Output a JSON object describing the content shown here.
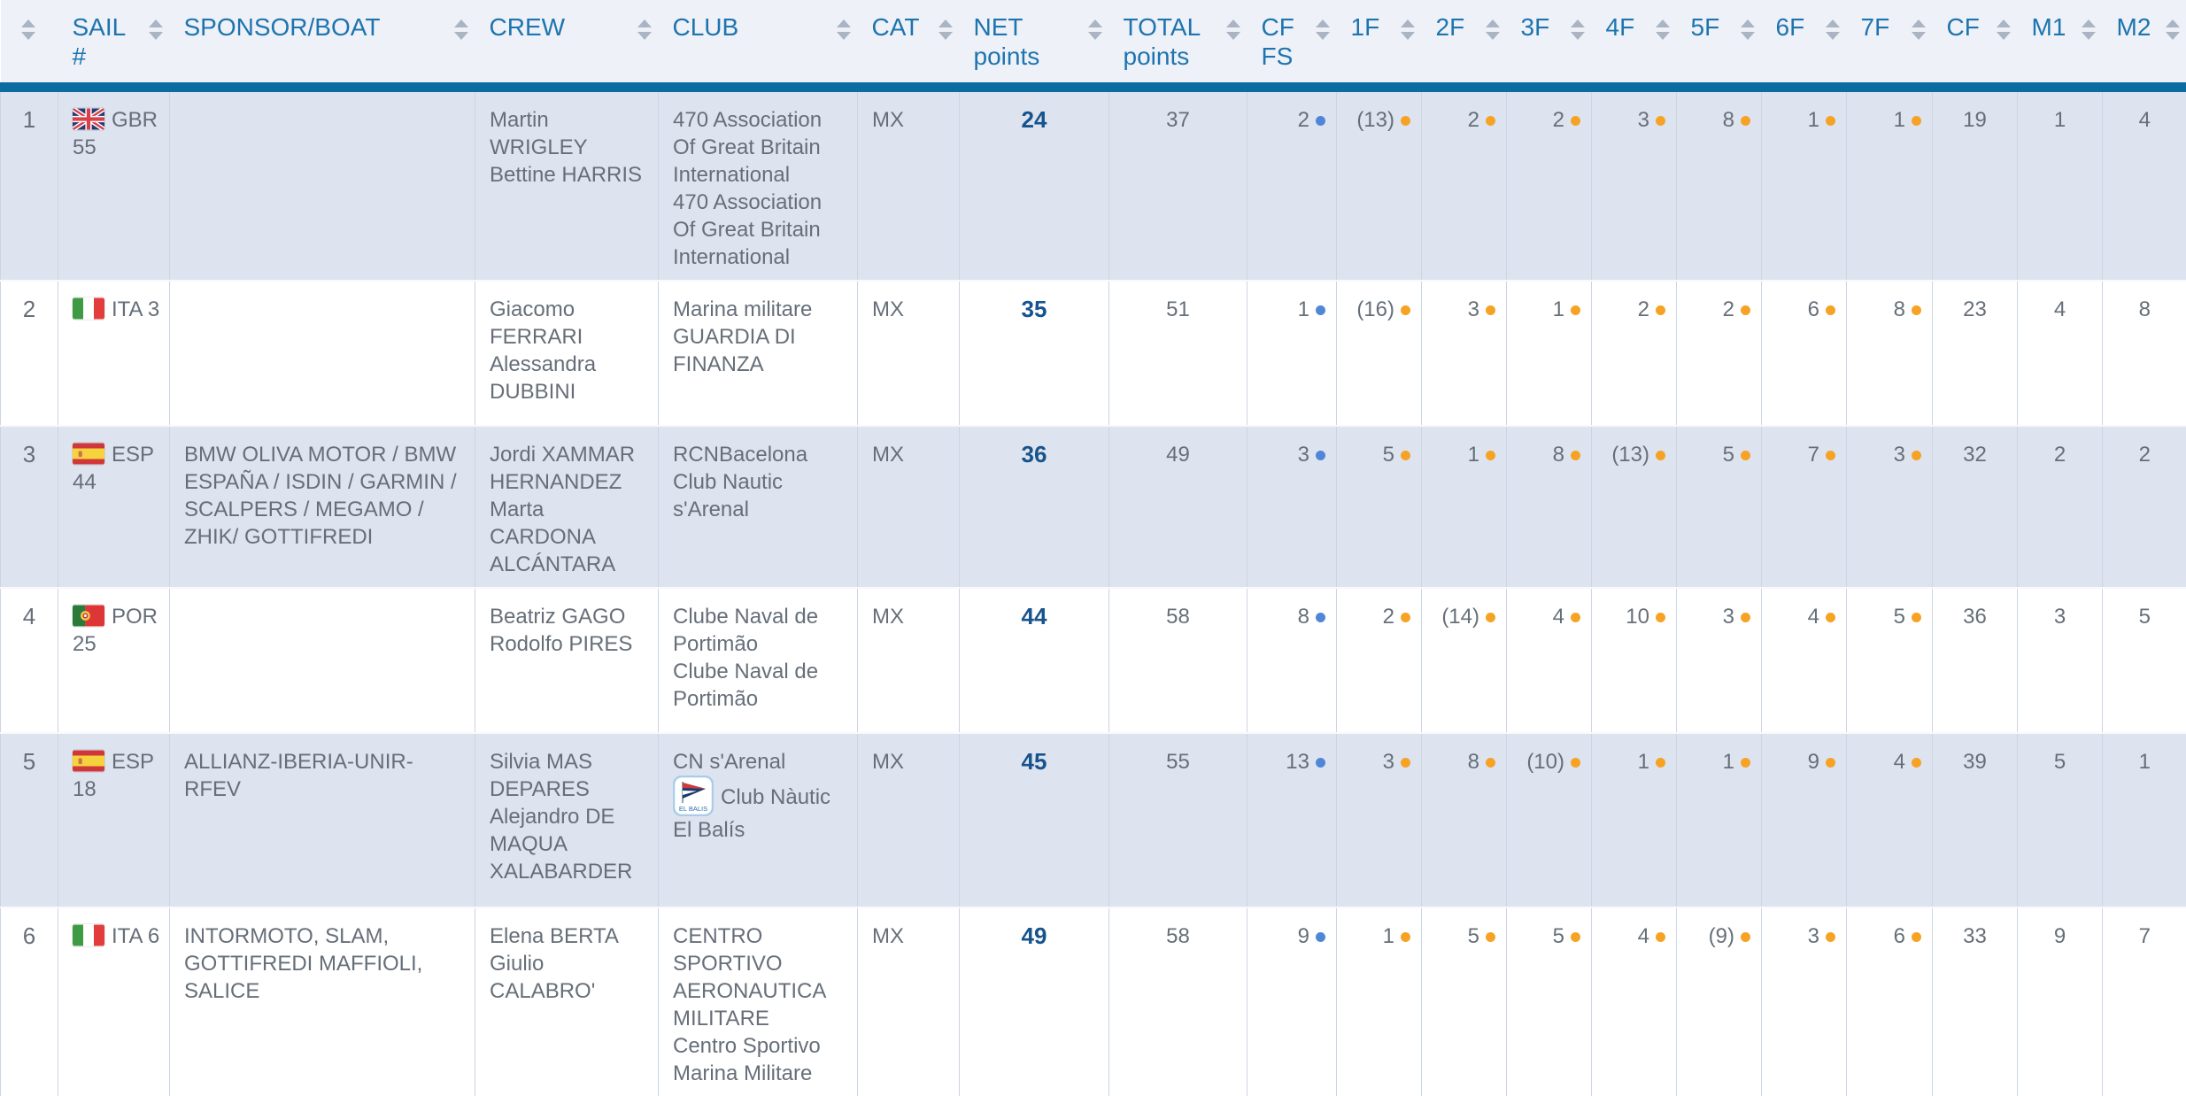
{
  "colors": {
    "header_text": "#1d74af",
    "header_bar": "#0c6ca2",
    "header_bg": "#eef1f7",
    "row_alt_bg": "#dde4ef",
    "body_text": "#666f79",
    "net_text": "#17538d",
    "dot_orange": "#f6a325",
    "dot_blue": "#4f87d7",
    "sort_arrow": "#aab4c2"
  },
  "header": {
    "columns": [
      {
        "id": "rank",
        "label": ""
      },
      {
        "id": "sail",
        "label": "SAIL #"
      },
      {
        "id": "sponsor",
        "label": "SPONSOR/BOAT"
      },
      {
        "id": "crew",
        "label": "CREW"
      },
      {
        "id": "club",
        "label": "CLUB"
      },
      {
        "id": "cat",
        "label": "CAT"
      },
      {
        "id": "net",
        "label": "NET points"
      },
      {
        "id": "total",
        "label": "TOTAL points"
      },
      {
        "id": "cffs",
        "label": "CF FS"
      },
      {
        "id": "r1",
        "label": "1F"
      },
      {
        "id": "r2",
        "label": "2F"
      },
      {
        "id": "r3",
        "label": "3F"
      },
      {
        "id": "r4",
        "label": "4F"
      },
      {
        "id": "r5",
        "label": "5F"
      },
      {
        "id": "r6",
        "label": "6F"
      },
      {
        "id": "r7",
        "label": "7F"
      },
      {
        "id": "cf",
        "label": "CF"
      },
      {
        "id": "m1",
        "label": "M1"
      },
      {
        "id": "m2",
        "label": "M2"
      }
    ]
  },
  "rows": [
    {
      "rank": "1",
      "flag": "gbr",
      "sail": "GBR 55",
      "sponsor": "",
      "crew": [
        "Martin WRIGLEY",
        "Bettine HARRIS"
      ],
      "club": [
        {
          "text": "470 Association Of Great Britain International"
        },
        {
          "text": "470 Association Of Great Britain International"
        }
      ],
      "cat": "MX",
      "net": "24",
      "total": "37",
      "cffs": {
        "value": "2",
        "dot": "blue"
      },
      "races": [
        {
          "value": "(13)",
          "dot": "orange"
        },
        {
          "value": "2",
          "dot": "orange"
        },
        {
          "value": "2",
          "dot": "orange"
        },
        {
          "value": "3",
          "dot": "orange"
        },
        {
          "value": "8",
          "dot": "orange"
        },
        {
          "value": "1",
          "dot": "orange"
        },
        {
          "value": "1",
          "dot": "orange"
        }
      ],
      "cf": "19",
      "m1": "1",
      "m2": "4"
    },
    {
      "rank": "2",
      "flag": "ita",
      "sail": "ITA 3",
      "sponsor": "",
      "crew": [
        "Giacomo FERRARI",
        "Alessandra DUBBINI"
      ],
      "club": [
        {
          "text": "Marina militare GUARDIA DI FINANZA"
        }
      ],
      "cat": "MX",
      "net": "35",
      "total": "51",
      "cffs": {
        "value": "1",
        "dot": "blue"
      },
      "races": [
        {
          "value": "(16)",
          "dot": "orange"
        },
        {
          "value": "3",
          "dot": "orange"
        },
        {
          "value": "1",
          "dot": "orange"
        },
        {
          "value": "2",
          "dot": "orange"
        },
        {
          "value": "2",
          "dot": "orange"
        },
        {
          "value": "6",
          "dot": "orange"
        },
        {
          "value": "8",
          "dot": "orange"
        }
      ],
      "cf": "23",
      "m1": "4",
      "m2": "8"
    },
    {
      "rank": "3",
      "flag": "esp",
      "sail": "ESP 44",
      "sponsor": "BMW OLIVA MOTOR / BMW ESPAÑA / ISDIN / GARMIN / SCALPERS / MEGAMO / ZHIK/ GOTTIFREDI",
      "crew": [
        "Jordi XAMMAR HERNANDEZ",
        "Marta CARDONA ALCÁNTARA"
      ],
      "club": [
        {
          "text": "RCNBacelona"
        },
        {
          "text": "Club Nautic s'Arenal"
        }
      ],
      "cat": "MX",
      "net": "36",
      "total": "49",
      "cffs": {
        "value": "3",
        "dot": "blue"
      },
      "races": [
        {
          "value": "5",
          "dot": "orange"
        },
        {
          "value": "1",
          "dot": "orange"
        },
        {
          "value": "8",
          "dot": "orange"
        },
        {
          "value": "(13)",
          "dot": "orange"
        },
        {
          "value": "5",
          "dot": "orange"
        },
        {
          "value": "7",
          "dot": "orange"
        },
        {
          "value": "3",
          "dot": "orange"
        }
      ],
      "cf": "32",
      "m1": "2",
      "m2": "2"
    },
    {
      "rank": "4",
      "flag": "por",
      "sail": "POR 25",
      "sponsor": "",
      "crew": [
        "Beatriz GAGO",
        "Rodolfo PIRES"
      ],
      "club": [
        {
          "text": "Clube Naval de Portimão"
        },
        {
          "text": "Clube Naval de Portimão"
        }
      ],
      "cat": "MX",
      "net": "44",
      "total": "58",
      "cffs": {
        "value": "8",
        "dot": "blue"
      },
      "races": [
        {
          "value": "2",
          "dot": "orange"
        },
        {
          "value": "(14)",
          "dot": "orange"
        },
        {
          "value": "4",
          "dot": "orange"
        },
        {
          "value": "10",
          "dot": "orange"
        },
        {
          "value": "3",
          "dot": "orange"
        },
        {
          "value": "4",
          "dot": "orange"
        },
        {
          "value": "5",
          "dot": "orange"
        }
      ],
      "cf": "36",
      "m1": "3",
      "m2": "5"
    },
    {
      "rank": "5",
      "flag": "esp",
      "sail": "ESP 18",
      "sponsor": "ALLIANZ-IBERIA-UNIR-RFEV",
      "crew": [
        "Silvia MAS DEPARES",
        "Alejandro DE MAQUA XALABARDER"
      ],
      "club": [
        {
          "text": "CN s'Arenal"
        },
        {
          "text": "Club Nàutic El Balís",
          "logo": "club-nautic-el-balis-burgee"
        }
      ],
      "cat": "MX",
      "net": "45",
      "total": "55",
      "cffs": {
        "value": "13",
        "dot": "blue"
      },
      "races": [
        {
          "value": "3",
          "dot": "orange"
        },
        {
          "value": "8",
          "dot": "orange"
        },
        {
          "value": "(10)",
          "dot": "orange"
        },
        {
          "value": "1",
          "dot": "orange"
        },
        {
          "value": "1",
          "dot": "orange"
        },
        {
          "value": "9",
          "dot": "orange"
        },
        {
          "value": "4",
          "dot": "orange"
        }
      ],
      "cf": "39",
      "m1": "5",
      "m2": "1"
    },
    {
      "rank": "6",
      "flag": "ita",
      "sail": "ITA 6",
      "sponsor": "INTORMOTO, SLAM, GOTTIFREDI MAFFIOLI, SALICE",
      "crew": [
        "Elena BERTA",
        "Giulio CALABRO'"
      ],
      "club": [
        {
          "text": "CENTRO SPORTIVO AERONAUTICA MILITARE"
        },
        {
          "text": "Centro Sportivo Marina Militare"
        }
      ],
      "cat": "MX",
      "net": "49",
      "total": "58",
      "cffs": {
        "value": "9",
        "dot": "blue"
      },
      "races": [
        {
          "value": "1",
          "dot": "orange"
        },
        {
          "value": "5",
          "dot": "orange"
        },
        {
          "value": "5",
          "dot": "orange"
        },
        {
          "value": "4",
          "dot": "orange"
        },
        {
          "value": "(9)",
          "dot": "orange"
        },
        {
          "value": "3",
          "dot": "orange"
        },
        {
          "value": "6",
          "dot": "orange"
        }
      ],
      "cf": "33",
      "m1": "9",
      "m2": "7"
    }
  ]
}
